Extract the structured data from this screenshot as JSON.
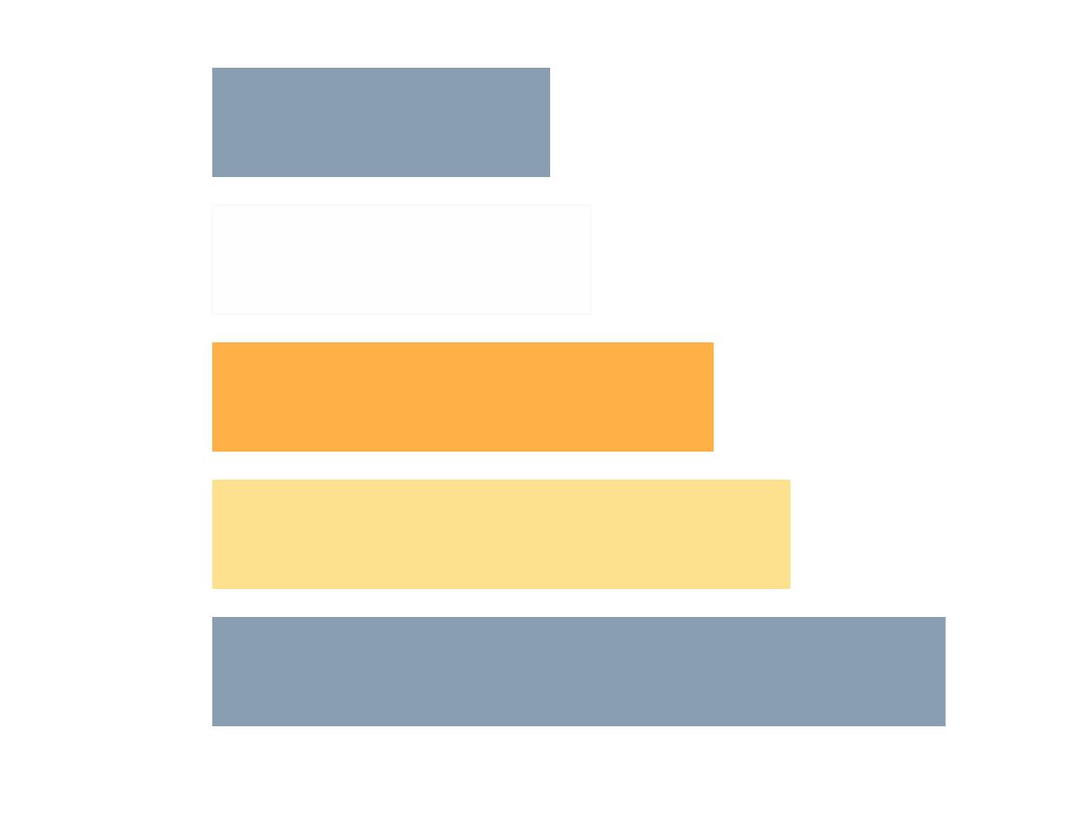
{
  "chart_data": {
    "type": "bar",
    "orientation": "horizontal",
    "values": [
      44,
      49.3,
      65.3,
      75.3,
      95.5
    ],
    "colors": [
      "#899fb1",
      "#fefefe",
      "#ffb148",
      "#fee18f",
      "#899fb1"
    ],
    "xlim": [
      0,
      100
    ],
    "grid": false,
    "legend": "none"
  }
}
